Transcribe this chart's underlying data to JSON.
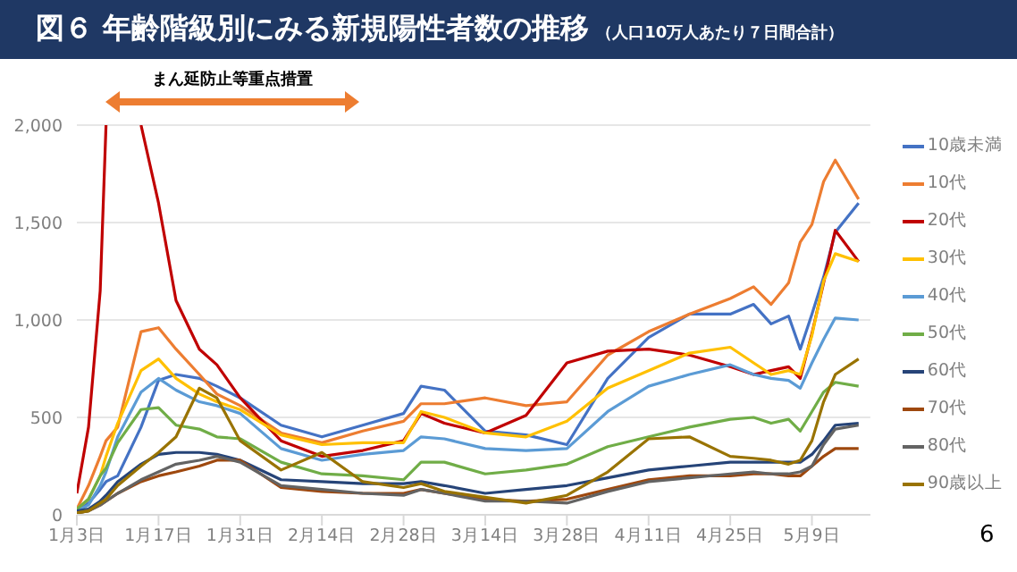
{
  "chart_data": {
    "type": "line",
    "title": "図６ 年齢階級別にみる新規陽性者数の推移",
    "subtitle": "（人口10万人あたり７日間合計）",
    "annotations": [
      "まん延防止等重点措置",
      "6"
    ],
    "x": [
      "--01-03",
      "--01-05",
      "--01-07",
      "--01-08",
      "--01-10",
      "--01-14",
      "--01-17",
      "--01-20",
      "--01-24",
      "--01-27",
      "--01-31",
      "--02-07",
      "--02-14",
      "--02-21",
      "--02-28",
      "--03-03",
      "--03-07",
      "--03-14",
      "--03-21",
      "--03-28",
      "--04-04",
      "--04-11",
      "--04-18",
      "--04-25",
      "--04-29",
      "--05-02",
      "--05-05",
      "--05-07",
      "--05-09",
      "--05-11",
      "--05-13",
      "--05-17"
    ],
    "series": [
      {
        "name": "10歳未満",
        "color": "#4472c4",
        "values": [
          20,
          60,
          130,
          170,
          200,
          450,
          690,
          720,
          700,
          660,
          600,
          460,
          400,
          460,
          520,
          660,
          640,
          430,
          410,
          360,
          700,
          910,
          1030,
          1030,
          1080,
          980,
          1020,
          850,
          1030,
          1220,
          1450,
          1600
        ]
      },
      {
        "name": "10代",
        "color": "#ed7d31",
        "values": [
          30,
          150,
          300,
          380,
          450,
          940,
          960,
          850,
          720,
          620,
          560,
          420,
          370,
          430,
          480,
          570,
          570,
          600,
          560,
          580,
          820,
          940,
          1030,
          1110,
          1170,
          1080,
          1190,
          1400,
          1490,
          1710,
          1820,
          1620
        ]
      },
      {
        "name": "20代",
        "color": "#c00000",
        "values": [
          110,
          450,
          1150,
          2000,
          null,
          2000,
          1600,
          1100,
          850,
          770,
          600,
          380,
          300,
          330,
          380,
          520,
          470,
          420,
          510,
          780,
          840,
          850,
          820,
          760,
          720,
          740,
          760,
          700,
          930,
          1190,
          1460,
          1300
        ]
      },
      {
        "name": "30代",
        "color": "#ffc000",
        "values": [
          30,
          80,
          200,
          300,
          470,
          740,
          800,
          700,
          620,
          580,
          540,
          410,
          360,
          370,
          370,
          530,
          500,
          420,
          400,
          480,
          650,
          740,
          830,
          860,
          780,
          720,
          740,
          720,
          920,
          1200,
          1340,
          1300
        ]
      },
      {
        "name": "40代",
        "color": "#5b9bd5",
        "values": [
          20,
          50,
          150,
          220,
          400,
          630,
          700,
          640,
          580,
          560,
          520,
          340,
          280,
          310,
          330,
          400,
          390,
          340,
          330,
          340,
          530,
          660,
          720,
          770,
          720,
          700,
          690,
          650,
          780,
          900,
          1010,
          1000
        ]
      },
      {
        "name": "50代",
        "color": "#70ad47",
        "values": [
          30,
          80,
          200,
          240,
          370,
          540,
          550,
          460,
          440,
          400,
          390,
          270,
          210,
          200,
          180,
          270,
          270,
          210,
          230,
          260,
          350,
          400,
          450,
          490,
          500,
          470,
          490,
          430,
          530,
          630,
          680,
          660
        ]
      },
      {
        "name": "60代",
        "color": "#264478",
        "values": [
          20,
          30,
          70,
          100,
          170,
          260,
          310,
          320,
          320,
          310,
          280,
          180,
          170,
          160,
          160,
          170,
          150,
          110,
          130,
          150,
          190,
          230,
          250,
          270,
          270,
          270,
          270,
          270,
          310,
          380,
          460,
          470
        ]
      },
      {
        "name": "70代",
        "color": "#9e480e",
        "values": [
          10,
          20,
          50,
          70,
          110,
          170,
          200,
          220,
          250,
          280,
          280,
          140,
          120,
          110,
          110,
          130,
          110,
          80,
          70,
          80,
          130,
          180,
          200,
          200,
          210,
          210,
          200,
          200,
          250,
          300,
          340,
          340
        ]
      },
      {
        "name": "80代",
        "color": "#636363",
        "values": [
          10,
          20,
          50,
          70,
          110,
          180,
          220,
          260,
          280,
          300,
          270,
          150,
          130,
          110,
          100,
          130,
          110,
          70,
          70,
          60,
          120,
          170,
          190,
          210,
          220,
          210,
          210,
          220,
          250,
          360,
          440,
          460
        ]
      },
      {
        "name": "90歳以上",
        "color": "#997300",
        "values": [
          10,
          20,
          60,
          80,
          150,
          250,
          320,
          400,
          650,
          600,
          380,
          230,
          320,
          170,
          140,
          160,
          120,
          90,
          60,
          100,
          220,
          390,
          400,
          300,
          290,
          280,
          260,
          280,
          380,
          580,
          720,
          800
        ]
      }
    ],
    "xlim": [
      "--01-03",
      "--05-19"
    ],
    "xticks": [
      {
        "value": "--01-03",
        "label": "1月3日"
      },
      {
        "value": "--01-17",
        "label": "1月17日"
      },
      {
        "value": "--01-31",
        "label": "1月31日"
      },
      {
        "value": "--02-14",
        "label": "2月14日"
      },
      {
        "value": "--02-28",
        "label": "2月28日"
      },
      {
        "value": "--03-14",
        "label": "3月14日"
      },
      {
        "value": "--03-28",
        "label": "3月28日"
      },
      {
        "value": "--04-11",
        "label": "4月11日"
      },
      {
        "value": "--04-25",
        "label": "4月25日"
      },
      {
        "value": "--05-09",
        "label": "5月9日"
      }
    ],
    "ylim": [
      0,
      2000
    ],
    "yticks": [
      0,
      500,
      {
        "value": 1000,
        "label": "1,000"
      },
      {
        "value": 1500,
        "label": "1,500"
      },
      {
        "value": 2000,
        "label": "2,000"
      }
    ],
    "grid": "y",
    "legend": "right"
  }
}
